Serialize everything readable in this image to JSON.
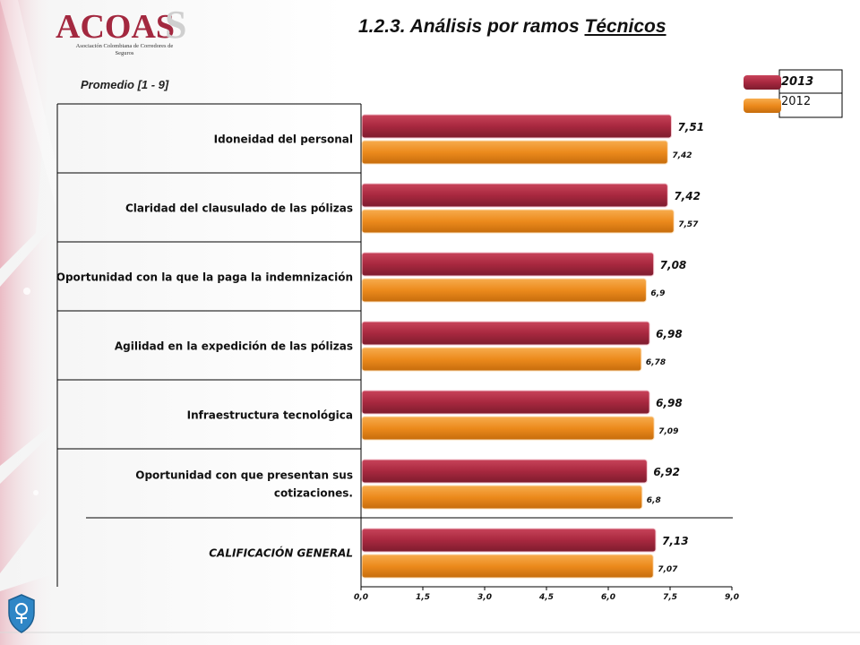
{
  "header": {
    "logo_text": "ACOAS",
    "logo_subtitle": "Asociación Colombiana de Corredores de Seguros",
    "title_prefix": "1.2.3. Análisis por ramos ",
    "title_underlined": "Técnicos",
    "subtitle": "Promedio  [1 - 9]"
  },
  "colors": {
    "series_2013": "#a8283f",
    "series_2012": "#ec8a1c",
    "decor_pink": "#d9667c"
  },
  "icons": {
    "bottom_left": "shield-emblem-icon"
  },
  "chart_data": {
    "type": "bar",
    "orientation": "horizontal",
    "title": "",
    "xlabel": "",
    "ylabel": "",
    "xlim": [
      0,
      9
    ],
    "xticks": [
      "0,0",
      "1,5",
      "3,0",
      "4,5",
      "6,0",
      "7,5",
      "9,0"
    ],
    "grid": false,
    "legend_placement": "top-right",
    "categories": [
      "Idoneidad del personal",
      "Claridad del clausulado de las pólizas",
      "Oportunidad con la que la paga la indemnización",
      "Agilidad en la expedición de las pólizas",
      "Infraestructura tecnológica",
      "Oportunidad con que presentan sus cotizaciones.",
      "CALIFICACIÓN GENERAL"
    ],
    "series": [
      {
        "name": "2013",
        "values": [
          7.51,
          7.42,
          7.08,
          6.98,
          6.98,
          6.92,
          7.13
        ],
        "labels": [
          "7,51",
          "7,42",
          "7,08",
          "6,98",
          "6,98",
          "6,92",
          "7,13"
        ]
      },
      {
        "name": "2012",
        "values": [
          7.42,
          7.57,
          6.9,
          6.78,
          7.09,
          6.8,
          7.07
        ],
        "labels": [
          "7,42",
          "7,57",
          "6,9",
          "6,78",
          "7,09",
          "6,8",
          "7,07"
        ]
      }
    ]
  }
}
